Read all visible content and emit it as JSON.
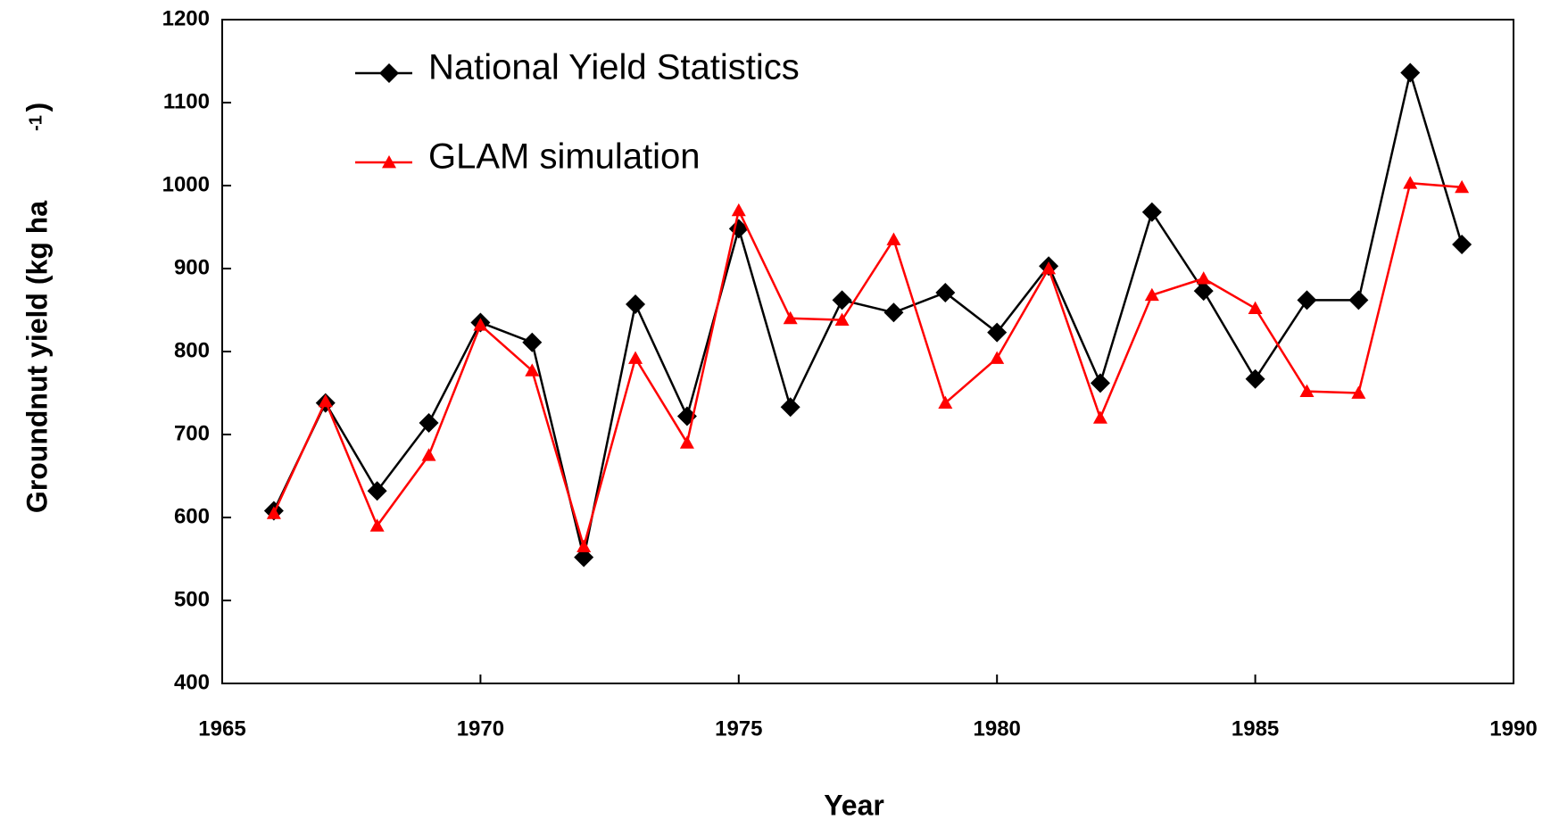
{
  "chart_data": {
    "type": "line",
    "xlabel": "Year",
    "ylabel": "Groundnut yield (kg ha",
    "ylabel_sup": "-1",
    "ylabel_end": ")",
    "x": [
      1966,
      1967,
      1968,
      1969,
      1970,
      1971,
      1972,
      1973,
      1974,
      1975,
      1976,
      1977,
      1978,
      1979,
      1980,
      1981,
      1982,
      1983,
      1984,
      1985,
      1986,
      1987,
      1988,
      1989
    ],
    "series": [
      {
        "name": "National Yield Statistics",
        "color": "#000000",
        "marker": "diamond",
        "values": [
          608,
          738,
          632,
          714,
          835,
          811,
          552,
          857,
          722,
          948,
          733,
          862,
          847,
          871,
          823,
          903,
          762,
          968,
          873,
          767,
          862,
          862,
          1136,
          929
        ]
      },
      {
        "name": "GLAM simulation",
        "color": "#ff0000",
        "marker": "triangle",
        "values": [
          605,
          740,
          590,
          675,
          832,
          777,
          565,
          792,
          690,
          970,
          840,
          838,
          935,
          738,
          792,
          900,
          720,
          868,
          888,
          852,
          752,
          750,
          1003,
          998
        ]
      }
    ],
    "xlim": [
      1965,
      1990
    ],
    "xticks": [
      1965,
      1970,
      1975,
      1980,
      1985,
      1990
    ],
    "ylim": [
      400,
      1200
    ],
    "yticks": [
      400,
      500,
      600,
      700,
      800,
      900,
      1000,
      1100,
      1200
    ],
    "legend": "upper-left"
  }
}
